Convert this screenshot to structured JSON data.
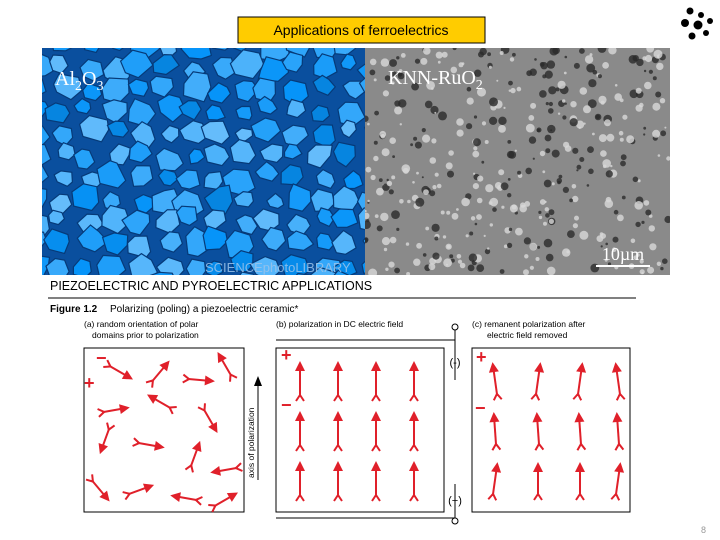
{
  "header": {
    "title": "Applications of ferroelectrics"
  },
  "images": [
    {
      "label": [
        "Al",
        "2",
        "O",
        "3"
      ],
      "credit": "SCIENCEphotoLIBRARY"
    },
    {
      "label": [
        "KNN-RuO",
        "2"
      ],
      "scale_bar": "10µm"
    }
  ],
  "section_heading": "PIEZOELECTRIC AND PYROELECTRIC APPLICATIONS",
  "figure": {
    "number": "Figure 1.2",
    "caption": "Polarizing (poling) a piezoelectric ceramic*",
    "panels": [
      [
        "(a) random orientation of polar",
        "domains prior to polarization"
      ],
      [
        "(b) polarization in DC electric field"
      ],
      [
        "(c) remanent polarization after",
        "electric field removed"
      ]
    ],
    "axis_label": "axis of polarization",
    "electrodes": {
      "negative": "(-)",
      "positive": "(+)"
    },
    "plus": "+",
    "minus": "−"
  },
  "page_number": "8"
}
